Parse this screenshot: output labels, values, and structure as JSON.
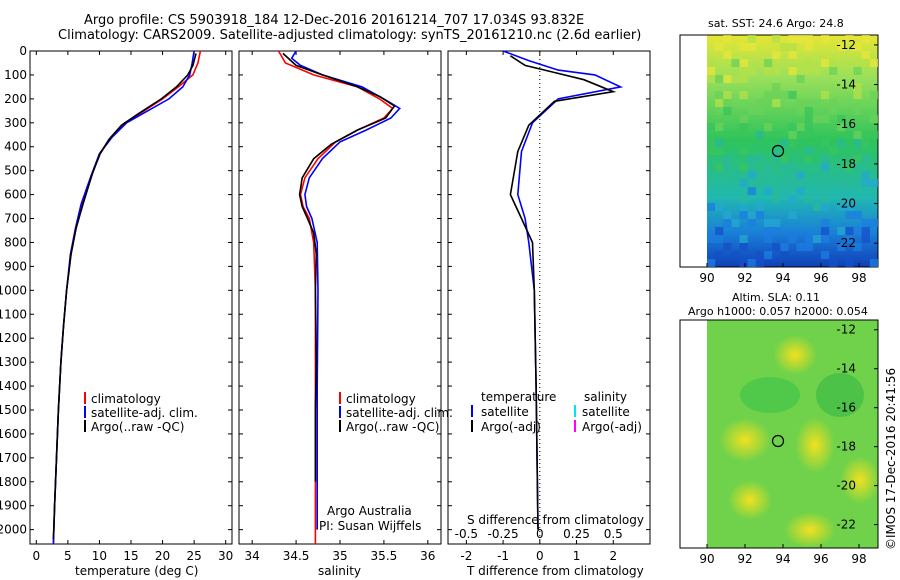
{
  "header": {
    "line1": "Argo profile: CS 5903918_184 12-Dec-2016 20161214_707 17.034S 93.832E",
    "line2": "Climatology: CARS2009. Satellite-adjusted climatology: synTS_20161210.nc (2.6d earlier)"
  },
  "colors": {
    "climatology": "#ff0000",
    "satellite": "#0000ff",
    "argo": "#000000",
    "sat_salinity": "#00e5ee",
    "argo_salinity": "#ff00ff"
  },
  "chart_data": [
    {
      "type": "line",
      "panel": "temperature",
      "xlabel": "temperature (deg C)",
      "xlim": [
        -1,
        31
      ],
      "xticks": [
        "0",
        "5",
        "10",
        "15",
        "20",
        "25",
        "30"
      ],
      "ylim": [
        2060,
        0
      ],
      "yticks": [
        "0",
        "100",
        "200",
        "300",
        "400",
        "500",
        "600",
        "700",
        "800",
        "900",
        "1000",
        "1100",
        "1200",
        "1300",
        "1400",
        "1500",
        "1600",
        "1700",
        "1800",
        "1900",
        "2000"
      ],
      "legend": [
        "climatology",
        "satellite-adj. clim.",
        "Argo(..raw -QC)"
      ],
      "series": [
        {
          "name": "climatology",
          "points": [
            [
              26,
              0
            ],
            [
              25.6,
              50
            ],
            [
              24.8,
              100
            ],
            [
              22.5,
              150
            ],
            [
              20,
              200
            ],
            [
              16.5,
              260
            ],
            [
              14,
              300
            ],
            [
              11.8,
              360
            ],
            [
              10,
              430
            ],
            [
              8.8,
              520
            ],
            [
              7.3,
              640
            ],
            [
              6.3,
              740
            ],
            [
              5.5,
              850
            ],
            [
              4.8,
              1000
            ],
            [
              4.3,
              1150
            ],
            [
              3.9,
              1300
            ],
            [
              3.5,
              1500
            ],
            [
              3.2,
              1700
            ],
            [
              2.9,
              1900
            ],
            [
              2.7,
              2060
            ]
          ]
        },
        {
          "name": "satellite-adj. clim.",
          "points": [
            [
              25,
              0
            ],
            [
              24.7,
              50
            ],
            [
              24.3,
              100
            ],
            [
              23.2,
              150
            ],
            [
              21,
              200
            ],
            [
              17,
              260
            ],
            [
              14.3,
              300
            ],
            [
              12,
              360
            ],
            [
              10,
              430
            ],
            [
              8.7,
              520
            ],
            [
              7.1,
              640
            ],
            [
              6.2,
              740
            ],
            [
              5.4,
              850
            ],
            [
              4.8,
              1000
            ],
            [
              4.3,
              1150
            ],
            [
              3.9,
              1300
            ],
            [
              3.5,
              1500
            ],
            [
              3.2,
              1700
            ],
            [
              2.9,
              1900
            ],
            [
              2.7,
              2060
            ]
          ]
        },
        {
          "name": "Argo(..raw -QC)",
          "points": [
            [
              25.3,
              10
            ],
            [
              24.8,
              60
            ],
            [
              24,
              100
            ],
            [
              22.2,
              150
            ],
            [
              19.8,
              200
            ],
            [
              16.3,
              260
            ],
            [
              13.5,
              310
            ],
            [
              11.5,
              370
            ],
            [
              10.1,
              430
            ],
            [
              8.9,
              510
            ],
            [
              7.4,
              640
            ],
            [
              6.3,
              740
            ],
            [
              5.5,
              850
            ],
            [
              4.8,
              1000
            ],
            [
              4.3,
              1150
            ],
            [
              3.9,
              1300
            ],
            [
              3.5,
              1500
            ],
            [
              3.2,
              1700
            ],
            [
              2.9,
              1900
            ],
            [
              2.7,
              2040
            ]
          ]
        }
      ]
    },
    {
      "type": "line",
      "panel": "salinity",
      "xlabel": "salinity",
      "xlim": [
        33.85,
        36.15
      ],
      "xticks": [
        "34",
        "34.5",
        "35",
        "35.5",
        "36"
      ],
      "ylim": [
        2060,
        0
      ],
      "legend": [
        "climatology",
        "satellite-adj. clim.",
        "Argo(..raw -QC)"
      ],
      "annotation": [
        "Argo Australia",
        "PI: Susan Wijffels"
      ],
      "series": [
        {
          "name": "climatology",
          "points": [
            [
              34.3,
              0
            ],
            [
              34.38,
              50
            ],
            [
              34.7,
              100
            ],
            [
              35.2,
              150
            ],
            [
              35.45,
              200
            ],
            [
              35.6,
              240
            ],
            [
              35.5,
              280
            ],
            [
              35.2,
              330
            ],
            [
              34.95,
              380
            ],
            [
              34.75,
              450
            ],
            [
              34.6,
              530
            ],
            [
              34.55,
              600
            ],
            [
              34.58,
              650
            ],
            [
              34.65,
              700
            ],
            [
              34.7,
              800
            ],
            [
              34.72,
              1000
            ],
            [
              34.72,
              1400
            ],
            [
              34.72,
              2060
            ]
          ]
        },
        {
          "name": "satellite-adj. clim.",
          "points": [
            [
              34.5,
              0
            ],
            [
              34.45,
              30
            ],
            [
              34.55,
              60
            ],
            [
              34.8,
              100
            ],
            [
              35.25,
              150
            ],
            [
              35.5,
              200
            ],
            [
              35.68,
              240
            ],
            [
              35.58,
              280
            ],
            [
              35.3,
              330
            ],
            [
              35.0,
              380
            ],
            [
              34.8,
              450
            ],
            [
              34.65,
              530
            ],
            [
              34.6,
              600
            ],
            [
              34.62,
              650
            ],
            [
              34.68,
              700
            ],
            [
              34.74,
              800
            ],
            [
              34.75,
              1000
            ],
            [
              34.74,
              1400
            ],
            [
              34.74,
              2000
            ]
          ]
        },
        {
          "name": "Argo(..raw -QC)",
          "points": [
            [
              34.35,
              10
            ],
            [
              34.5,
              60
            ],
            [
              34.8,
              100
            ],
            [
              35.2,
              150
            ],
            [
              35.45,
              190
            ],
            [
              35.62,
              230
            ],
            [
              35.52,
              280
            ],
            [
              35.2,
              330
            ],
            [
              34.9,
              390
            ],
            [
              34.7,
              450
            ],
            [
              34.57,
              530
            ],
            [
              34.54,
              600
            ],
            [
              34.57,
              650
            ],
            [
              34.63,
              700
            ],
            [
              34.7,
              760
            ],
            [
              34.73,
              850
            ],
            [
              34.72,
              1000
            ],
            [
              34.73,
              1300
            ],
            [
              34.72,
              1500
            ],
            [
              34.72,
              1800
            ]
          ]
        }
      ]
    },
    {
      "type": "line",
      "panel": "differences",
      "xlabel": "T difference from climatology",
      "xlabel_top": "S difference from climatology",
      "xlim": [
        -2.5,
        3
      ],
      "xticks": [
        "-2",
        "-1",
        "0",
        "1",
        "2"
      ],
      "s_ticks": [
        "-0.5",
        "-0.25",
        "0",
        "0.25",
        "0.5"
      ],
      "ylim": [
        2060,
        0
      ],
      "legend_titles": [
        "temperature",
        "salinity"
      ],
      "legend": [
        "satellite",
        "Argo(-adj)",
        "satellite",
        "Argo(-adj)"
      ],
      "series": [
        {
          "name": "satellite",
          "points": [
            [
              -1.0,
              0
            ],
            [
              -0.3,
              40
            ],
            [
              0.5,
              80
            ],
            [
              1.5,
              100
            ],
            [
              2.2,
              150
            ],
            [
              0.5,
              200
            ],
            [
              -0.2,
              300
            ],
            [
              -0.5,
              420
            ],
            [
              -0.6,
              600
            ],
            [
              -0.4,
              700
            ],
            [
              -0.3,
              800
            ],
            [
              -0.15,
              1000
            ],
            [
              -0.1,
              1400
            ],
            [
              -0.05,
              2000
            ]
          ]
        },
        {
          "name": "Argo(-adj)",
          "points": [
            [
              -0.8,
              20
            ],
            [
              -0.4,
              60
            ],
            [
              0.4,
              90
            ],
            [
              1.2,
              120
            ],
            [
              2.0,
              170
            ],
            [
              0.4,
              210
            ],
            [
              -0.3,
              310
            ],
            [
              -0.6,
              420
            ],
            [
              -0.8,
              600
            ],
            [
              -0.5,
              700
            ],
            [
              -0.2,
              800
            ],
            [
              -0.15,
              1000
            ],
            [
              -0.1,
              1400
            ],
            [
              -0.05,
              2000
            ]
          ]
        }
      ]
    }
  ],
  "maps": [
    {
      "title": "sat. SST: 24.6  Argo: 24.8",
      "xticks": [
        "90",
        "92",
        "94",
        "96",
        "98"
      ],
      "yticks": [
        "-12",
        "-14",
        "-16",
        "-18",
        "-20",
        "-22"
      ],
      "marker": {
        "lon": 93.83,
        "lat": -17.03
      }
    },
    {
      "title_line1": "Altim. SLA: 0.11",
      "title_line2": "Argo h1000: 0.057  h2000: 0.054",
      "xticks": [
        "90",
        "92",
        "94",
        "96",
        "98"
      ],
      "yticks": [
        "-12",
        "-14",
        "-16",
        "-18",
        "-20",
        "-22"
      ],
      "marker": {
        "lon": 93.83,
        "lat": -17.03
      }
    }
  ],
  "footer": {
    "credit": "©IMOS 17-Dec-2016 20:41:56"
  }
}
